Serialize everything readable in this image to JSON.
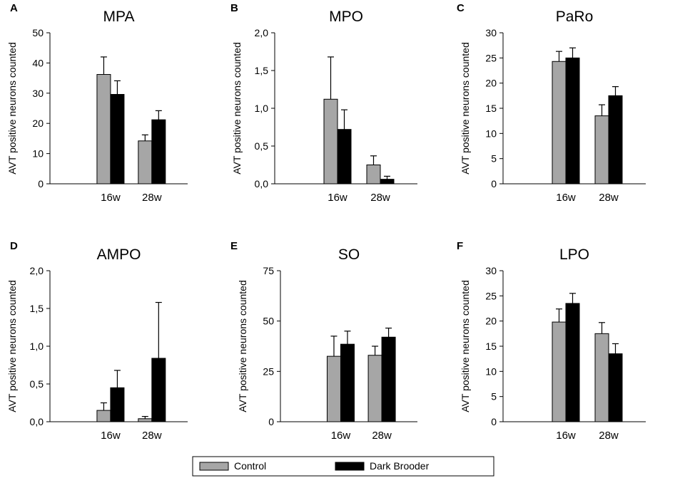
{
  "legend": {
    "items": [
      {
        "label": "Control",
        "color": "#a6a6a6"
      },
      {
        "label": "Dark Brooder",
        "color": "#000000"
      }
    ]
  },
  "chart_data": [
    {
      "panel": "A",
      "type": "bar",
      "title": "MPA",
      "ylabel": "AVT positive neurons counted",
      "categories": [
        "16w",
        "28w"
      ],
      "ylim": [
        0,
        50
      ],
      "yticks": [
        "0",
        "10",
        "20",
        "30",
        "40",
        "50"
      ],
      "series": [
        {
          "name": "Control",
          "values": [
            36.2,
            14.2
          ],
          "errors": [
            5.8,
            2.0
          ]
        },
        {
          "name": "Dark Brooder",
          "values": [
            29.6,
            21.2
          ],
          "errors": [
            4.5,
            3.0
          ]
        }
      ]
    },
    {
      "panel": "B",
      "type": "bar",
      "title": "MPO",
      "ylabel": "AVT positive neurons counted",
      "categories": [
        "16w",
        "28w"
      ],
      "ylim": [
        0,
        2
      ],
      "yticks": [
        "0,0",
        "0,5",
        "1,0",
        "1,5",
        "2,0"
      ],
      "series": [
        {
          "name": "Control",
          "values": [
            1.12,
            0.25
          ],
          "errors": [
            0.56,
            0.12
          ]
        },
        {
          "name": "Dark Brooder",
          "values": [
            0.72,
            0.06
          ],
          "errors": [
            0.26,
            0.04
          ]
        }
      ]
    },
    {
      "panel": "C",
      "type": "bar",
      "title": "PaRo",
      "ylabel": "AVT positive neurons counted",
      "categories": [
        "16w",
        "28w"
      ],
      "ylim": [
        0,
        30
      ],
      "yticks": [
        "0",
        "5",
        "10",
        "15",
        "20",
        "25",
        "30"
      ],
      "series": [
        {
          "name": "Control",
          "values": [
            24.3,
            13.5
          ],
          "errors": [
            2.0,
            2.2
          ]
        },
        {
          "name": "Dark Brooder",
          "values": [
            25.0,
            17.5
          ],
          "errors": [
            2.0,
            1.8
          ]
        }
      ]
    },
    {
      "panel": "D",
      "type": "bar",
      "title": "AMPO",
      "ylabel": "AVT positive neurons counted",
      "categories": [
        "16w",
        "28w"
      ],
      "ylim": [
        0,
        2
      ],
      "yticks": [
        "0,0",
        "0,5",
        "1,0",
        "1,5",
        "2,0"
      ],
      "series": [
        {
          "name": "Control",
          "values": [
            0.15,
            0.04
          ],
          "errors": [
            0.1,
            0.03
          ]
        },
        {
          "name": "Dark Brooder",
          "values": [
            0.45,
            0.84
          ],
          "errors": [
            0.23,
            0.74
          ]
        }
      ]
    },
    {
      "panel": "E",
      "type": "bar",
      "title": "SO",
      "ylabel": "AVT positive neurons counted",
      "categories": [
        "16w",
        "28w"
      ],
      "ylim": [
        0,
        75
      ],
      "yticks": [
        "0",
        "25",
        "50",
        "75"
      ],
      "series": [
        {
          "name": "Control",
          "values": [
            32.5,
            33.0
          ],
          "errors": [
            10.0,
            4.5
          ]
        },
        {
          "name": "Dark Brooder",
          "values": [
            38.5,
            42.0
          ],
          "errors": [
            6.5,
            4.5
          ]
        }
      ]
    },
    {
      "panel": "F",
      "type": "bar",
      "title": "LPO",
      "ylabel": "AVT positive neurons counted",
      "categories": [
        "16w",
        "28w"
      ],
      "ylim": [
        0,
        30
      ],
      "yticks": [
        "0",
        "5",
        "10",
        "15",
        "20",
        "25",
        "30"
      ],
      "series": [
        {
          "name": "Control",
          "values": [
            19.8,
            17.5
          ],
          "errors": [
            2.6,
            2.2
          ]
        },
        {
          "name": "Dark Brooder",
          "values": [
            23.5,
            13.5
          ],
          "errors": [
            2.0,
            2.0
          ]
        }
      ]
    }
  ]
}
